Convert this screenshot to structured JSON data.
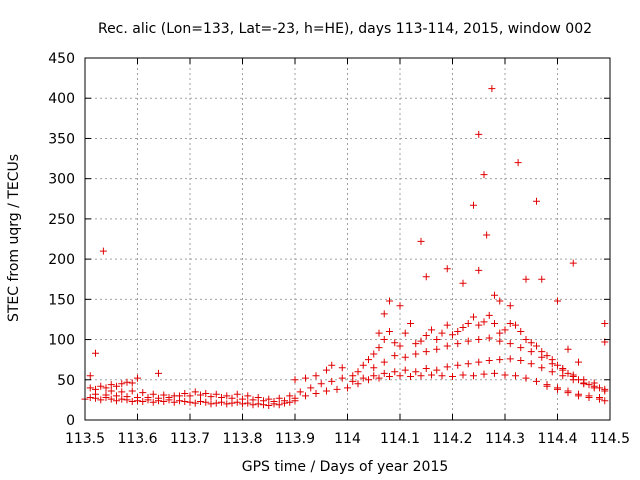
{
  "chart_data": {
    "type": "scatter",
    "title": "Rec. alic (Lon=133, Lat=-23, h=HE), days 113-114, 2015, window 002",
    "xlabel": "GPS time / Days of year 2015",
    "ylabel": "STEC from uqrg / TECUs",
    "xlim": [
      113.5,
      114.5
    ],
    "ylim": [
      0,
      450
    ],
    "xticks": [
      113.5,
      113.6,
      113.7,
      113.8,
      113.9,
      114,
      114.1,
      114.2,
      114.3,
      114.4,
      114.5
    ],
    "xtick_labels": [
      "113.5",
      "113.6",
      "113.7",
      "113.8",
      "113.9",
      "114",
      "114.1",
      "114.2",
      "114.3",
      "114.4",
      "114.5"
    ],
    "yticks": [
      0,
      50,
      100,
      150,
      200,
      250,
      300,
      350,
      400,
      450
    ],
    "ytick_labels": [
      "0",
      "50",
      "100",
      "150",
      "200",
      "250",
      "300",
      "350",
      "400",
      "450"
    ],
    "grid": true,
    "marker": "plus",
    "color": "#e00000",
    "points": [
      [
        113.51,
        55
      ],
      [
        113.52,
        83
      ],
      [
        113.535,
        210
      ],
      [
        113.51,
        40
      ],
      [
        113.52,
        38
      ],
      [
        113.53,
        42
      ],
      [
        113.54,
        40
      ],
      [
        113.55,
        44
      ],
      [
        113.56,
        42
      ],
      [
        113.57,
        45
      ],
      [
        113.58,
        47
      ],
      [
        113.59,
        46
      ],
      [
        113.6,
        52
      ],
      [
        113.64,
        58
      ],
      [
        113.5,
        26
      ],
      [
        113.51,
        28
      ],
      [
        113.52,
        27
      ],
      [
        113.53,
        25
      ],
      [
        113.54,
        28
      ],
      [
        113.55,
        26
      ],
      [
        113.56,
        24
      ],
      [
        113.57,
        26
      ],
      [
        113.58,
        25
      ],
      [
        113.59,
        23
      ],
      [
        113.6,
        24
      ],
      [
        113.61,
        23
      ],
      [
        113.62,
        25
      ],
      [
        113.63,
        22
      ],
      [
        113.64,
        24
      ],
      [
        113.65,
        23
      ],
      [
        113.66,
        25
      ],
      [
        113.67,
        22
      ],
      [
        113.68,
        24
      ],
      [
        113.69,
        23
      ],
      [
        113.7,
        22
      ],
      [
        113.71,
        21
      ],
      [
        113.72,
        23
      ],
      [
        113.73,
        22
      ],
      [
        113.74,
        20
      ],
      [
        113.75,
        21
      ],
      [
        113.76,
        22
      ],
      [
        113.77,
        20
      ],
      [
        113.78,
        21
      ],
      [
        113.79,
        22
      ],
      [
        113.8,
        20
      ],
      [
        113.81,
        21
      ],
      [
        113.82,
        19
      ],
      [
        113.83,
        20
      ],
      [
        113.84,
        19
      ],
      [
        113.85,
        18
      ],
      [
        113.86,
        20
      ],
      [
        113.87,
        19
      ],
      [
        113.88,
        21
      ],
      [
        113.89,
        22
      ],
      [
        113.9,
        24
      ],
      [
        113.52,
        32
      ],
      [
        113.54,
        31
      ],
      [
        113.56,
        30
      ],
      [
        113.58,
        29
      ],
      [
        113.6,
        28
      ],
      [
        113.62,
        28
      ],
      [
        113.64,
        27
      ],
      [
        113.66,
        28
      ],
      [
        113.68,
        30
      ],
      [
        113.7,
        30
      ],
      [
        113.72,
        31
      ],
      [
        113.74,
        29
      ],
      [
        113.76,
        28
      ],
      [
        113.78,
        27
      ],
      [
        113.8,
        26
      ],
      [
        113.82,
        25
      ],
      [
        113.84,
        24
      ],
      [
        113.86,
        23
      ],
      [
        113.88,
        24
      ],
      [
        113.9,
        27
      ],
      [
        113.92,
        30
      ],
      [
        113.94,
        33
      ],
      [
        113.96,
        36
      ],
      [
        113.98,
        38
      ],
      [
        114.0,
        40
      ],
      [
        113.55,
        36
      ],
      [
        113.57,
        35
      ],
      [
        113.59,
        36
      ],
      [
        113.61,
        34
      ],
      [
        113.63,
        32
      ],
      [
        113.65,
        31
      ],
      [
        113.67,
        30
      ],
      [
        113.69,
        33
      ],
      [
        113.71,
        35
      ],
      [
        113.73,
        33
      ],
      [
        113.75,
        32
      ],
      [
        113.77,
        30
      ],
      [
        113.79,
        32
      ],
      [
        113.81,
        30
      ],
      [
        113.83,
        28
      ],
      [
        113.85,
        26
      ],
      [
        113.87,
        27
      ],
      [
        113.89,
        30
      ],
      [
        113.91,
        35
      ],
      [
        113.93,
        40
      ],
      [
        113.95,
        45
      ],
      [
        113.97,
        48
      ],
      [
        113.99,
        52
      ],
      [
        113.9,
        50
      ],
      [
        113.92,
        52
      ],
      [
        113.94,
        55
      ],
      [
        113.96,
        62
      ],
      [
        113.97,
        68
      ],
      [
        113.99,
        65
      ],
      [
        114.01,
        55
      ],
      [
        114.02,
        60
      ],
      [
        114.03,
        68
      ],
      [
        114.04,
        75
      ],
      [
        114.05,
        82
      ],
      [
        114.06,
        90
      ],
      [
        114.07,
        100
      ],
      [
        114.08,
        110
      ],
      [
        114.09,
        96
      ],
      [
        114.1,
        92
      ],
      [
        114.11,
        108
      ],
      [
        114.12,
        120
      ],
      [
        114.13,
        95
      ],
      [
        114.14,
        98
      ],
      [
        114.15,
        105
      ],
      [
        114.16,
        112
      ],
      [
        114.17,
        100
      ],
      [
        114.18,
        108
      ],
      [
        114.19,
        118
      ],
      [
        114.2,
        106
      ],
      [
        114.21,
        110
      ],
      [
        114.22,
        115
      ],
      [
        114.23,
        120
      ],
      [
        114.24,
        128
      ],
      [
        114.25,
        118
      ],
      [
        114.26,
        122
      ],
      [
        114.27,
        130
      ],
      [
        114.28,
        120
      ],
      [
        114.29,
        108
      ],
      [
        114.3,
        112
      ],
      [
        114.31,
        120
      ],
      [
        114.32,
        118
      ],
      [
        114.33,
        110
      ],
      [
        114.34,
        100
      ],
      [
        114.35,
        96
      ],
      [
        114.36,
        92
      ],
      [
        114.37,
        85
      ],
      [
        114.38,
        80
      ],
      [
        114.39,
        75
      ],
      [
        114.4,
        68
      ],
      [
        114.41,
        62
      ],
      [
        114.42,
        58
      ],
      [
        114.43,
        54
      ],
      [
        114.44,
        50
      ],
      [
        114.45,
        46
      ],
      [
        114.46,
        44
      ],
      [
        114.47,
        42
      ],
      [
        114.48,
        40
      ],
      [
        114.49,
        38
      ],
      [
        114.01,
        48
      ],
      [
        114.03,
        52
      ],
      [
        114.05,
        55
      ],
      [
        114.07,
        58
      ],
      [
        114.09,
        60
      ],
      [
        114.11,
        62
      ],
      [
        114.13,
        60
      ],
      [
        114.15,
        64
      ],
      [
        114.17,
        62
      ],
      [
        114.19,
        66
      ],
      [
        114.21,
        68
      ],
      [
        114.23,
        70
      ],
      [
        114.25,
        72
      ],
      [
        114.27,
        74
      ],
      [
        114.29,
        75
      ],
      [
        114.31,
        76
      ],
      [
        114.33,
        74
      ],
      [
        114.35,
        70
      ],
      [
        114.37,
        65
      ],
      [
        114.39,
        60
      ],
      [
        114.41,
        55
      ],
      [
        114.43,
        50
      ],
      [
        114.45,
        45
      ],
      [
        114.47,
        40
      ],
      [
        114.49,
        36
      ],
      [
        114.02,
        45
      ],
      [
        114.04,
        50
      ],
      [
        114.06,
        52
      ],
      [
        114.08,
        54
      ],
      [
        114.1,
        55
      ],
      [
        114.12,
        54
      ],
      [
        114.14,
        55
      ],
      [
        114.16,
        56
      ],
      [
        114.18,
        55
      ],
      [
        114.2,
        54
      ],
      [
        114.22,
        56
      ],
      [
        114.24,
        55
      ],
      [
        114.26,
        57
      ],
      [
        114.28,
        58
      ],
      [
        114.3,
        56
      ],
      [
        114.32,
        55
      ],
      [
        114.34,
        52
      ],
      [
        114.36,
        48
      ],
      [
        114.38,
        44
      ],
      [
        114.4,
        40
      ],
      [
        114.42,
        36
      ],
      [
        114.44,
        32
      ],
      [
        114.46,
        30
      ],
      [
        114.48,
        28
      ],
      [
        114.05,
        65
      ],
      [
        114.07,
        72
      ],
      [
        114.09,
        80
      ],
      [
        114.11,
        78
      ],
      [
        114.13,
        82
      ],
      [
        114.15,
        85
      ],
      [
        114.17,
        88
      ],
      [
        114.19,
        92
      ],
      [
        114.21,
        95
      ],
      [
        114.23,
        98
      ],
      [
        114.25,
        100
      ],
      [
        114.27,
        102
      ],
      [
        114.29,
        98
      ],
      [
        114.31,
        95
      ],
      [
        114.33,
        90
      ],
      [
        114.35,
        85
      ],
      [
        114.37,
        78
      ],
      [
        114.39,
        70
      ],
      [
        114.41,
        64
      ],
      [
        114.43,
        56
      ],
      [
        114.45,
        50
      ],
      [
        114.47,
        46
      ],
      [
        114.06,
        108
      ],
      [
        114.07,
        132
      ],
      [
        114.08,
        148
      ],
      [
        114.1,
        142
      ],
      [
        114.14,
        222
      ],
      [
        114.15,
        178
      ],
      [
        114.19,
        188
      ],
      [
        114.22,
        170
      ],
      [
        114.24,
        267
      ],
      [
        114.25,
        186
      ],
      [
        114.25,
        355
      ],
      [
        114.26,
        305
      ],
      [
        114.265,
        230
      ],
      [
        114.275,
        412
      ],
      [
        114.28,
        155
      ],
      [
        114.29,
        148
      ],
      [
        114.31,
        142
      ],
      [
        114.325,
        320
      ],
      [
        114.34,
        175
      ],
      [
        114.36,
        272
      ],
      [
        114.37,
        175
      ],
      [
        114.4,
        148
      ],
      [
        114.42,
        88
      ],
      [
        114.43,
        195
      ],
      [
        114.44,
        72
      ],
      [
        114.49,
        120
      ],
      [
        114.49,
        97
      ],
      [
        114.38,
        42
      ],
      [
        114.4,
        38
      ],
      [
        114.42,
        34
      ],
      [
        114.44,
        30
      ],
      [
        114.46,
        28
      ],
      [
        114.48,
        26
      ],
      [
        114.49,
        24
      ]
    ]
  }
}
